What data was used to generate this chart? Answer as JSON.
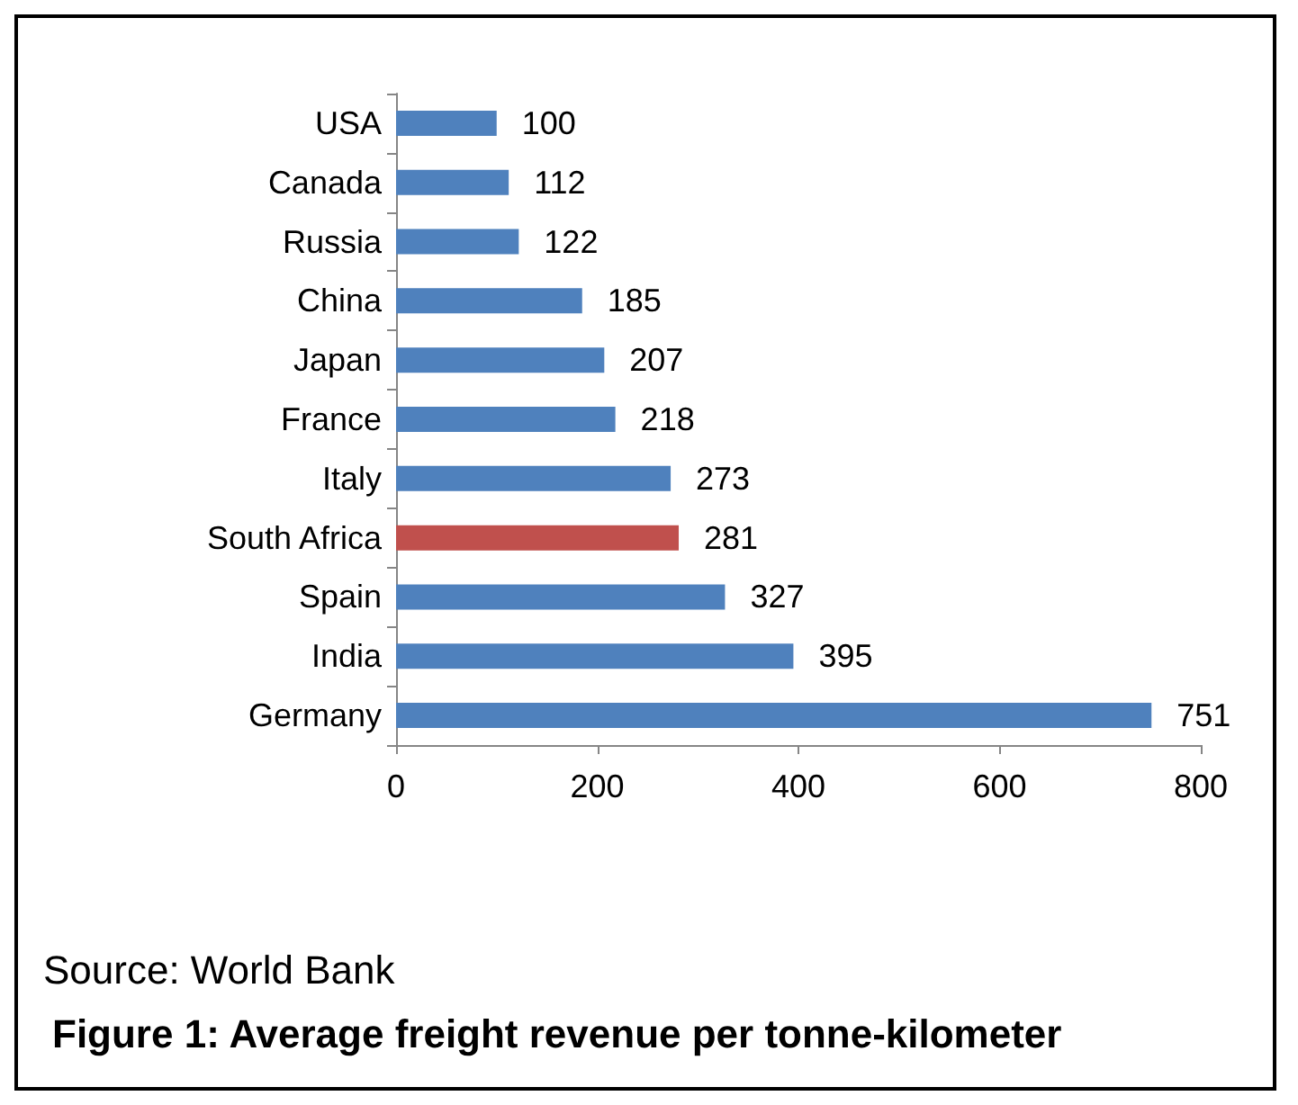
{
  "chart_data": {
    "type": "bar",
    "orientation": "horizontal",
    "title": "Figure 1: Average freight revenue per tonne-kilometer",
    "categories": [
      "USA",
      "Canada",
      "Russia",
      "China",
      "Japan",
      "France",
      "Italy",
      "South Africa",
      "Spain",
      "India",
      "Germany"
    ],
    "values": [
      100,
      112,
      122,
      185,
      207,
      218,
      273,
      281,
      327,
      395,
      751
    ],
    "colors": [
      "#4f81bd",
      "#4f81bd",
      "#4f81bd",
      "#4f81bd",
      "#4f81bd",
      "#4f81bd",
      "#4f81bd",
      "#c0504d",
      "#4f81bd",
      "#4f81bd",
      "#4f81bd"
    ],
    "xlim": [
      0,
      800
    ],
    "xticks": [
      0,
      200,
      400,
      600,
      800
    ],
    "grid": false,
    "data_labels": true,
    "annotations": [
      "Source: World Bank"
    ]
  }
}
